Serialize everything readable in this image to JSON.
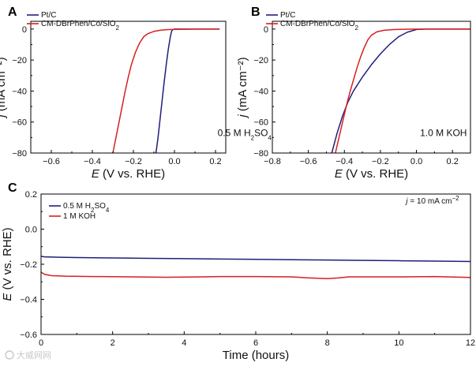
{
  "figure": {
    "watermark": "大威网网"
  },
  "chart_data": [
    {
      "panel_label": "A",
      "type": "line",
      "title": "",
      "xlabel_italic": "E",
      "xlabel_rest": " (V vs. RHE)",
      "ylabel_italic": "j",
      "ylabel_rest": " (mA cm⁻²)",
      "xlim": [
        -0.7,
        0.25
      ],
      "ylim": [
        -80,
        5
      ],
      "xticks": [
        -0.6,
        -0.4,
        -0.2,
        0.0,
        0.2
      ],
      "xtick_labels": [
        "−0.6",
        "−0.4",
        "−0.2",
        "0.0",
        "0.2"
      ],
      "yticks": [
        0,
        -20,
        -40,
        -60,
        -80
      ],
      "ytick_labels": [
        "0",
        "−20",
        "−40",
        "−60",
        "−80"
      ],
      "annotation_parts": [
        "0.5 M H",
        "2",
        "SO",
        "4"
      ],
      "annotation_pos": [
        0.21,
        -69
      ],
      "series": [
        {
          "name": "Pt/C",
          "legend_parts": [
            "Pt/C"
          ],
          "color": "#1f1f7a",
          "x": [
            -0.09,
            -0.08,
            -0.07,
            -0.06,
            -0.05,
            -0.04,
            -0.03,
            -0.02,
            -0.015,
            -0.01,
            0.0,
            0.05,
            0.1,
            0.22
          ],
          "y": [
            -80,
            -70,
            -58,
            -46,
            -34,
            -23,
            -13,
            -5,
            -2,
            -0.5,
            0,
            0,
            0,
            0
          ]
        },
        {
          "name": "CM-DBrPhen/Co/SiO2",
          "legend_parts": [
            "CM-DBrPhen/Co/SiO",
            "2"
          ],
          "color": "#d62020",
          "x": [
            -0.3,
            -0.285,
            -0.27,
            -0.255,
            -0.24,
            -0.225,
            -0.21,
            -0.19,
            -0.17,
            -0.15,
            -0.13,
            -0.1,
            -0.07,
            -0.04,
            0.0,
            0.1,
            0.22
          ],
          "y": [
            -80,
            -70,
            -60,
            -50,
            -40,
            -31,
            -23,
            -15,
            -9,
            -5,
            -3,
            -1.5,
            -0.8,
            -0.4,
            -0.2,
            0,
            0
          ]
        }
      ]
    },
    {
      "panel_label": "B",
      "type": "line",
      "title": "",
      "xlabel_italic": "E",
      "xlabel_rest": " (V vs. RHE)",
      "ylabel_italic": "j",
      "ylabel_rest": " (mA cm⁻²)",
      "xlim": [
        -0.8,
        0.3
      ],
      "ylim": [
        -80,
        5
      ],
      "xticks": [
        -0.8,
        -0.6,
        -0.4,
        -0.2,
        0.0,
        0.2
      ],
      "xtick_labels": [
        "−0.8",
        "−0.6",
        "−0.4",
        "−0.2",
        "0.0",
        "0.2"
      ],
      "yticks": [
        0,
        -20,
        -40,
        -60,
        -80
      ],
      "ytick_labels": [
        "0",
        "−20",
        "−40",
        "−60",
        "−80"
      ],
      "annotation_parts": [
        "1.0 M KOH"
      ],
      "annotation_pos": [
        0.02,
        -69
      ],
      "series": [
        {
          "name": "Pt/C",
          "legend_parts": [
            "Pt/C"
          ],
          "color": "#1f1f7a",
          "x": [
            -0.47,
            -0.44,
            -0.41,
            -0.38,
            -0.35,
            -0.3,
            -0.25,
            -0.2,
            -0.15,
            -0.1,
            -0.05,
            0.0,
            0.05,
            0.3
          ],
          "y": [
            -80,
            -67,
            -56,
            -47,
            -40,
            -31,
            -23,
            -16,
            -10,
            -5,
            -2,
            -0.3,
            0,
            0
          ]
        },
        {
          "name": "CM-DBrPhen/Co/SiO2",
          "legend_parts": [
            "CM-DBrPhen/Co/SiO",
            "2"
          ],
          "color": "#d62020",
          "x": [
            -0.45,
            -0.43,
            -0.41,
            -0.39,
            -0.37,
            -0.35,
            -0.33,
            -0.31,
            -0.29,
            -0.27,
            -0.25,
            -0.22,
            -0.18,
            -0.12,
            -0.05,
            0.05,
            0.3
          ],
          "y": [
            -80,
            -70,
            -60,
            -50,
            -41,
            -33,
            -25,
            -18,
            -12,
            -7,
            -4,
            -1.8,
            -0.8,
            -0.3,
            -0.1,
            0,
            0
          ]
        }
      ]
    },
    {
      "panel_label": "C",
      "type": "line",
      "title": "",
      "xlabel_italic": "",
      "xlabel_rest": "Time (hours)",
      "ylabel_italic": "E",
      "ylabel_rest": " (V vs. RHE)",
      "xlim": [
        0,
        12
      ],
      "ylim": [
        -0.6,
        0.2
      ],
      "xticks": [
        0,
        2,
        4,
        6,
        8,
        10,
        12
      ],
      "xtick_labels": [
        "0",
        "2",
        "4",
        "6",
        "8",
        "10",
        "12"
      ],
      "yticks": [
        0.2,
        0.0,
        -0.2,
        -0.4,
        -0.6
      ],
      "ytick_labels": [
        "0.2",
        "0.0",
        "−0.2",
        "−0.4",
        "−0.6"
      ],
      "annotation_parts": [
        "j",
        " = 10 mA cm",
        "−2"
      ],
      "annotation_pos": [
        10.2,
        0.145
      ],
      "series": [
        {
          "name": "0.5 M H2SO4",
          "legend_parts": [
            "0.5 M H",
            "2",
            "SO",
            "4"
          ],
          "color": "#1f1f7a",
          "x": [
            0,
            0.1,
            0.5,
            1,
            2,
            3,
            4,
            5,
            6,
            7,
            8,
            9,
            10,
            11,
            12
          ],
          "y": [
            -0.155,
            -0.158,
            -0.16,
            -0.162,
            -0.164,
            -0.166,
            -0.168,
            -0.17,
            -0.172,
            -0.174,
            -0.176,
            -0.178,
            -0.18,
            -0.182,
            -0.184
          ]
        },
        {
          "name": "1 M KOH",
          "legend_parts": [
            "1 M KOH"
          ],
          "color": "#d62020",
          "x": [
            0,
            0.1,
            0.3,
            0.7,
            1.5,
            2.5,
            3.5,
            4.5,
            5,
            6,
            7,
            7.5,
            8,
            8.3,
            8.6,
            9,
            10,
            11,
            12
          ],
          "y": [
            -0.245,
            -0.258,
            -0.265,
            -0.268,
            -0.27,
            -0.272,
            -0.274,
            -0.272,
            -0.27,
            -0.27,
            -0.272,
            -0.278,
            -0.282,
            -0.278,
            -0.272,
            -0.272,
            -0.272,
            -0.27,
            -0.275
          ]
        }
      ]
    }
  ]
}
